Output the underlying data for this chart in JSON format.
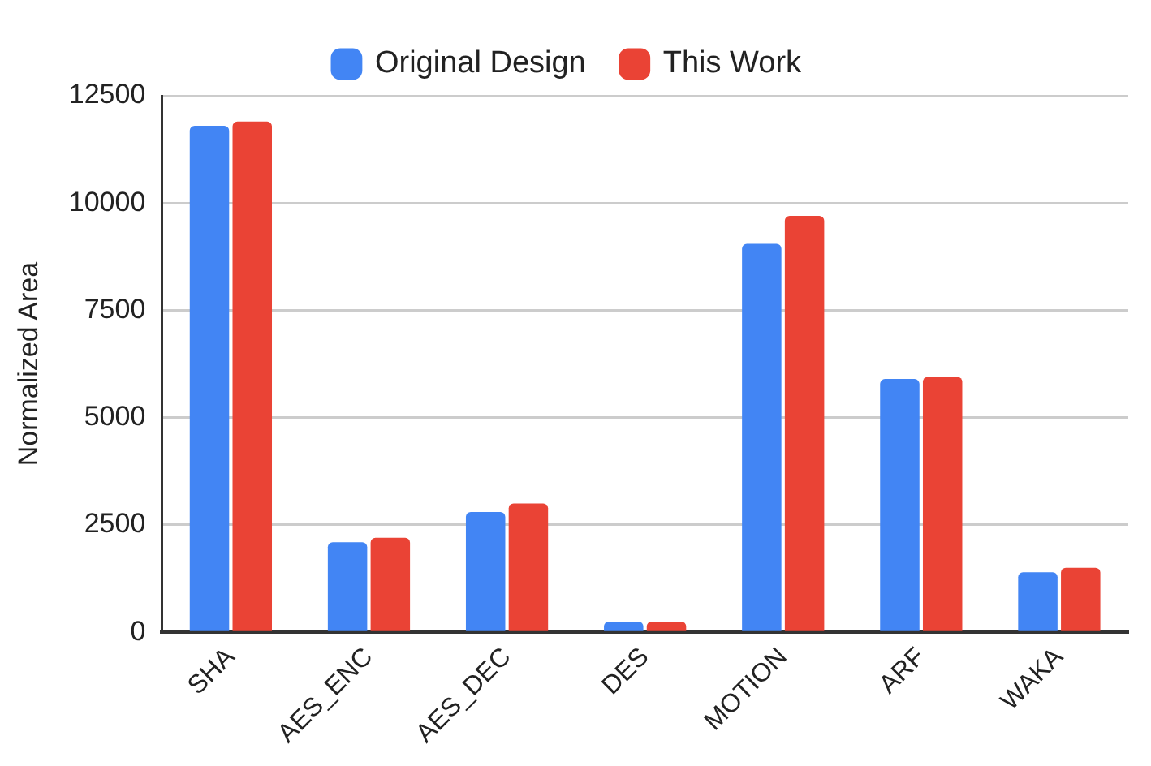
{
  "chart_data": {
    "type": "bar",
    "ylabel": "Normalized Area",
    "categories": [
      "SHA",
      "AES_ENC",
      "AES_DEC",
      "DES",
      "MOTION",
      "ARF",
      "WAKA"
    ],
    "series": [
      {
        "name": "Original Design",
        "color": "#4285f4",
        "values": [
          11800,
          2100,
          2800,
          250,
          9050,
          5900,
          1400
        ]
      },
      {
        "name": "This Work",
        "color": "#ea4335",
        "values": [
          11900,
          2200,
          3000,
          250,
          9700,
          5950,
          1500
        ]
      }
    ],
    "ylim": [
      0,
      12500
    ],
    "yticks": [
      0,
      2500,
      5000,
      7500,
      10000,
      12500
    ],
    "grid": "y",
    "legend": "top"
  }
}
